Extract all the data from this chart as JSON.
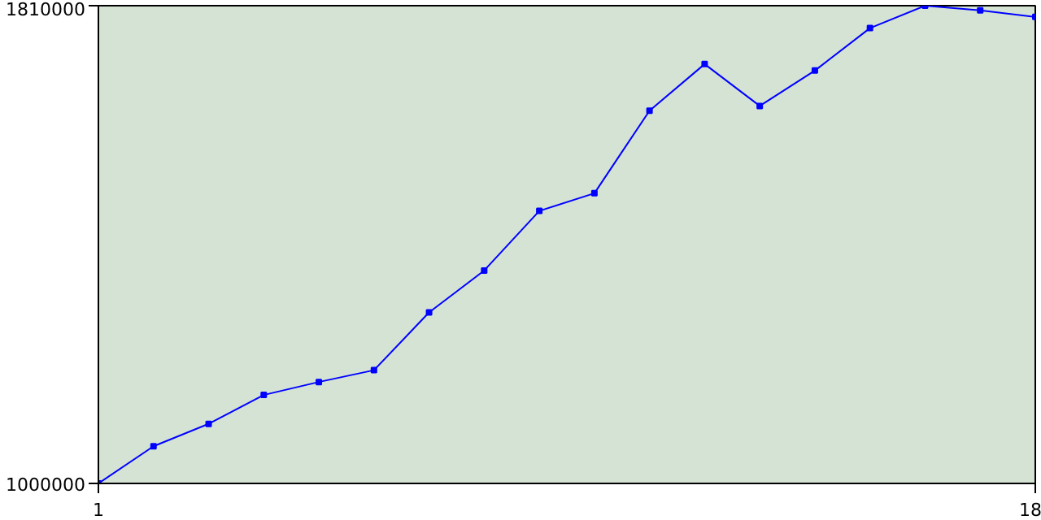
{
  "chart_data": {
    "type": "line",
    "x": [
      1,
      2,
      3,
      4,
      5,
      6,
      7,
      8,
      9,
      10,
      11,
      12,
      13,
      14,
      15,
      16,
      17,
      18
    ],
    "series": [
      {
        "color": "#0000ff",
        "values": [
          1000000,
          1063000,
          1101000,
          1150000,
          1172000,
          1192000,
          1290000,
          1361000,
          1462000,
          1492000,
          1632000,
          1711000,
          1640000,
          1700000,
          1772000,
          1810000,
          1802000,
          1791000
        ]
      }
    ],
    "xlim": [
      1,
      18
    ],
    "ylim": [
      1000000,
      1810000
    ],
    "xticks": [
      1,
      18
    ],
    "yticks": [
      1000000,
      1810000
    ],
    "marker": "square",
    "line_style": "solid"
  }
}
